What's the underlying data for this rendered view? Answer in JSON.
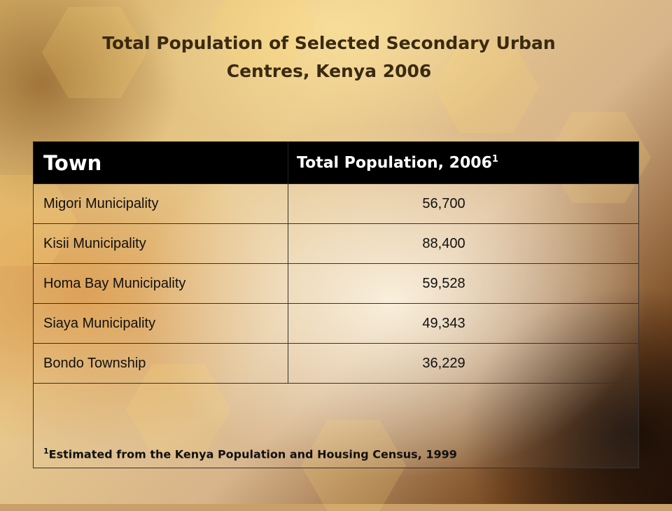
{
  "title": {
    "line1": "Total Population of Selected Secondary Urban",
    "line2": "Centres, Kenya 2006"
  },
  "table": {
    "headers": {
      "town": "Town",
      "population": "Total Population, 2006",
      "population_note_marker": "1"
    },
    "rows": [
      {
        "town": "Migori Municipality",
        "population": "56,700"
      },
      {
        "town": "Kisii Municipality",
        "population": "88,400"
      },
      {
        "town": "Homa Bay Municipality",
        "population": "59,528"
      },
      {
        "town": "Siaya Municipality",
        "population": "49,343"
      },
      {
        "town": "Bondo Township",
        "population": "36,229"
      }
    ],
    "footnote": {
      "marker": "1",
      "text": "Estimated from the Kenya Population and Housing Census, 1999"
    }
  }
}
